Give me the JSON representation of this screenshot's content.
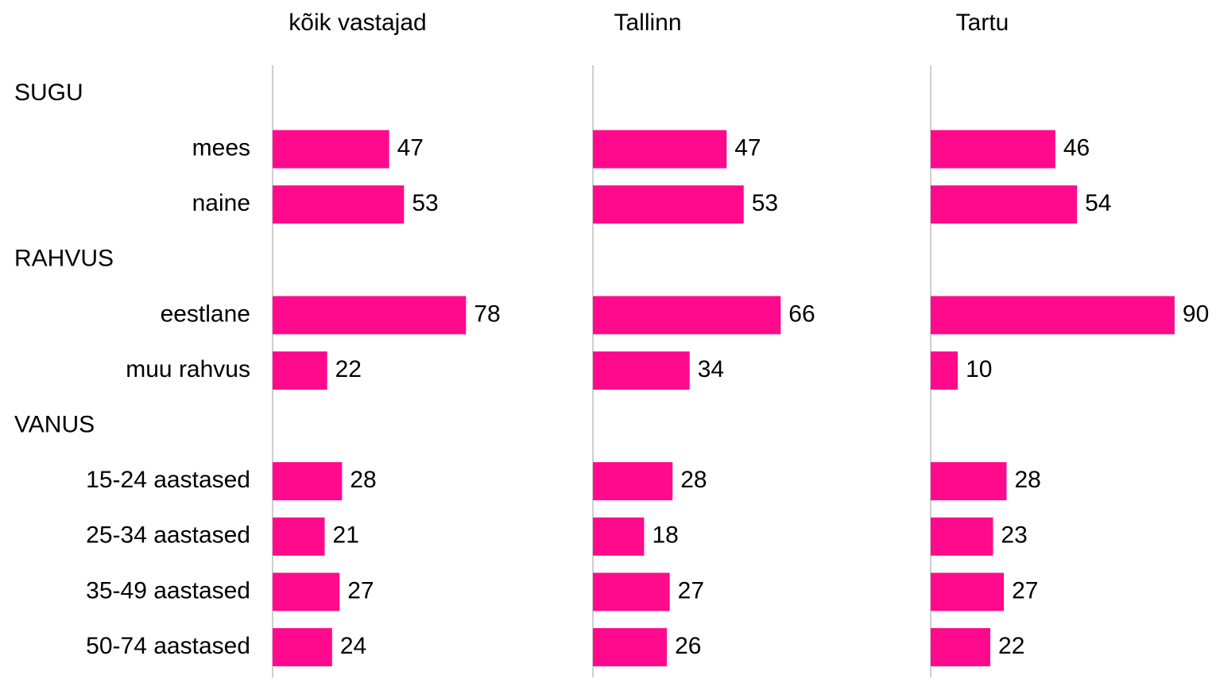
{
  "chart_data": {
    "type": "bar",
    "orientation": "horizontal",
    "categories": [
      "SUGU",
      "mees",
      "naine",
      "RAHVUS",
      "eestlane",
      "muu rahvus",
      "VANUS",
      "15-24 aastased",
      "25-34 aastased",
      "35-49 aastased",
      "50-74 aastased"
    ],
    "series": [
      {
        "name": "kõik vastajad",
        "color": "#ff0a8c",
        "values": [
          null,
          47,
          53,
          null,
          78,
          22,
          null,
          28,
          21,
          27,
          24
        ]
      },
      {
        "name": "Tallinn",
        "color": "#ff0a8c",
        "values": [
          null,
          47,
          53,
          null,
          66,
          34,
          null,
          28,
          18,
          27,
          26
        ]
      },
      {
        "name": "Tartu",
        "color": "#ff0a8c",
        "values": [
          null,
          46,
          54,
          null,
          90,
          10,
          null,
          28,
          23,
          27,
          22
        ]
      }
    ],
    "xlim": [
      0,
      100
    ]
  }
}
